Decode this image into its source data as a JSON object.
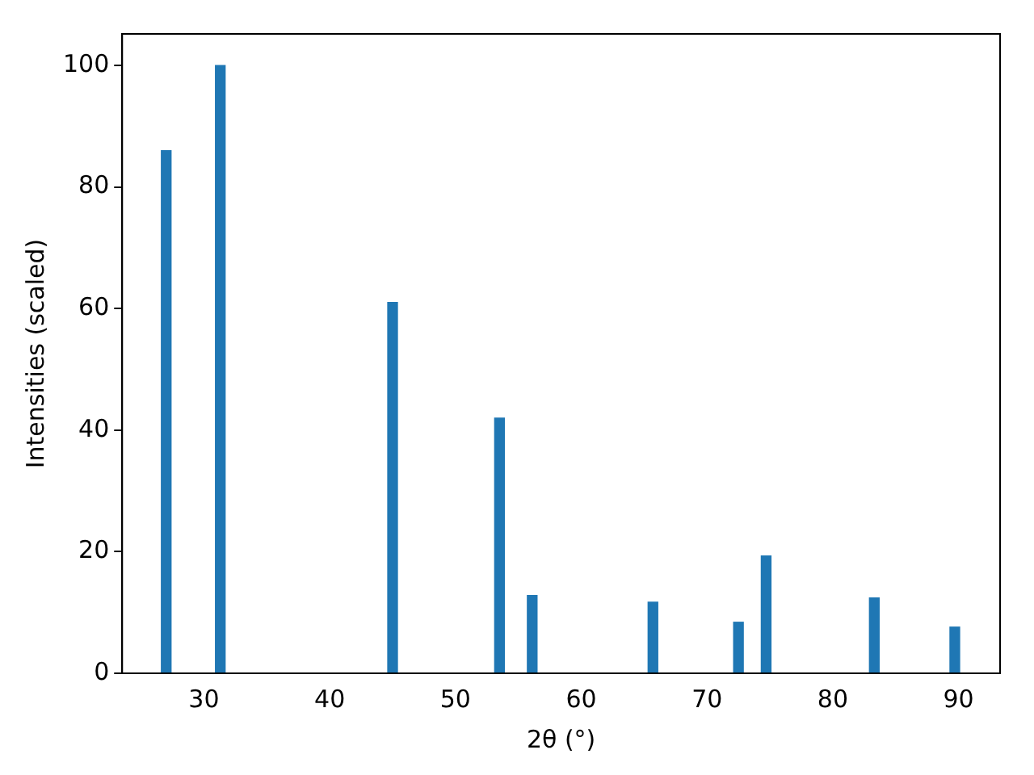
{
  "chart_data": {
    "type": "bar",
    "xlabel": "2θ (°)",
    "ylabel": "Intensities (scaled)",
    "x": [
      27.0,
      31.3,
      45.0,
      53.5,
      56.1,
      65.7,
      72.5,
      74.7,
      83.3,
      89.7
    ],
    "values": [
      86,
      100,
      61,
      42,
      12.8,
      11.7,
      8.4,
      19.3,
      12.4,
      7.6
    ],
    "color": "#1f77b4",
    "xlim": [
      23.5,
      93.3
    ],
    "xticks": [
      30,
      40,
      50,
      60,
      70,
      80,
      90
    ],
    "ylim": [
      0,
      105.2
    ],
    "yticks": [
      0,
      20,
      40,
      60,
      80,
      100
    ],
    "grid": false,
    "legend": false
  }
}
